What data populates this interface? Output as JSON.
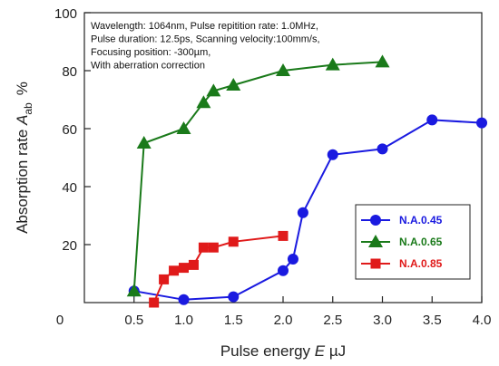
{
  "chart_data": {
    "type": "line",
    "xlabel": {
      "prefix": "Pulse energy ",
      "var": "E",
      "unit": " µJ"
    },
    "ylabel": {
      "prefix": "Absorption rate ",
      "var": "A",
      "sub": "ab",
      "unit": "%"
    },
    "xlim": [
      0,
      4
    ],
    "ylim": [
      0,
      100
    ],
    "xticks": [
      0.5,
      1.0,
      1.5,
      2.0,
      2.5,
      3.0,
      3.5,
      4.0
    ],
    "xtick_labels": [
      "0.5",
      "1.0",
      "1.5",
      "2.0",
      "2.5",
      "3.0",
      "3.5",
      "4.0"
    ],
    "yticks": [
      20,
      40,
      60,
      80,
      100
    ],
    "origin_label": "0",
    "grid": false,
    "legend_position": "right",
    "annotation": [
      "Wavelength: 1064nm, Pulse repitition rate: 1.0MHz,",
      "Pulse duration: 12.5ps, Scanning velocity:100mm/s,",
      "Focusing position: -300µm,",
      "With aberration correction"
    ],
    "series": [
      {
        "name": "N.A.0.45",
        "color": "#1a1ae0",
        "marker": "circle",
        "x": [
          0.5,
          1.0,
          1.5,
          2.0,
          2.1,
          2.2,
          2.5,
          3.0,
          3.5,
          4.0
        ],
        "y": [
          4,
          1,
          2,
          11,
          15,
          31,
          51,
          53,
          63,
          62
        ]
      },
      {
        "name": "N.A.0.65",
        "color": "#1a7a1a",
        "marker": "triangle",
        "x": [
          0.5,
          0.6,
          1.0,
          1.2,
          1.3,
          1.5,
          2.0,
          2.5,
          3.0
        ],
        "y": [
          4,
          55,
          60,
          69,
          73,
          75,
          80,
          82,
          83
        ]
      },
      {
        "name": "N.A.0.85",
        "color": "#e01a1a",
        "marker": "square",
        "x": [
          0.7,
          0.8,
          0.9,
          1.0,
          1.1,
          1.2,
          1.3,
          1.5,
          2.0
        ],
        "y": [
          0,
          8,
          11,
          12,
          13,
          19,
          19,
          21,
          23
        ]
      }
    ]
  }
}
